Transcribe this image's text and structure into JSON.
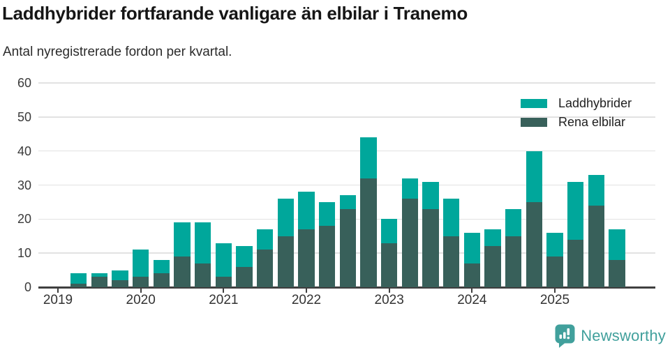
{
  "header": {
    "title": "Laddhybrider fortfarande vanligare än elbilar i Tranemo",
    "subtitle": "Antal nyregistrerade fordon per kvartal."
  },
  "legend": {
    "items": [
      {
        "label": "Laddhybrider",
        "color": "#00a79b"
      },
      {
        "label": "Rena elbilar",
        "color": "#38605a"
      }
    ]
  },
  "footer": {
    "brand": "Newsworthy",
    "brand_color": "#41a09c",
    "logo_icon": "bar-chart-speech-bubble-icon"
  },
  "chart_data": {
    "type": "bar",
    "stacked": true,
    "title": "Laddhybrider fortfarande vanligare än elbilar i Tranemo",
    "subtitle": "Antal nyregistrerade fordon per kvartal.",
    "xlabel": "",
    "ylabel": "",
    "ylim": [
      0,
      60
    ],
    "yticks": [
      0,
      10,
      20,
      30,
      40,
      50,
      60
    ],
    "grid": true,
    "legend_position": "top-right",
    "categories": [
      "2019 Q1",
      "2019 Q2",
      "2019 Q3",
      "2019 Q4",
      "2020 Q1",
      "2020 Q2",
      "2020 Q3",
      "2020 Q4",
      "2021 Q1",
      "2021 Q2",
      "2021 Q3",
      "2021 Q4",
      "2022 Q1",
      "2022 Q2",
      "2022 Q3",
      "2022 Q4",
      "2023 Q1",
      "2023 Q2",
      "2023 Q3",
      "2023 Q4",
      "2024 Q1",
      "2024 Q2",
      "2024 Q3",
      "2024 Q4",
      "2025 Q1",
      "2025 Q2",
      "2025 Q3",
      "2025 Q4"
    ],
    "x_tick_labels": [
      "2019",
      "2020",
      "2021",
      "2022",
      "2023",
      "2024",
      "2025"
    ],
    "x_tick_indices": [
      0,
      4,
      8,
      12,
      16,
      20,
      24
    ],
    "series": [
      {
        "name": "Rena elbilar",
        "color": "#38605a",
        "values": [
          0,
          1,
          3,
          2,
          3,
          4,
          9,
          7,
          3,
          6,
          11,
          15,
          17,
          18,
          23,
          32,
          13,
          26,
          23,
          15,
          7,
          12,
          15,
          25,
          9,
          14,
          24,
          8
        ]
      },
      {
        "name": "Laddhybrider",
        "color": "#00a79b",
        "values": [
          0,
          3,
          1,
          3,
          8,
          4,
          10,
          12,
          10,
          6,
          6,
          11,
          11,
          7,
          4,
          12,
          7,
          6,
          8,
          11,
          9,
          5,
          8,
          15,
          7,
          17,
          9,
          9
        ]
      }
    ],
    "stack_totals": [
      0,
      4,
      4,
      5,
      11,
      8,
      19,
      19,
      13,
      12,
      17,
      26,
      28,
      25,
      27,
      44,
      20,
      32,
      31,
      26,
      16,
      17,
      23,
      40,
      16,
      31,
      33,
      17
    ]
  }
}
